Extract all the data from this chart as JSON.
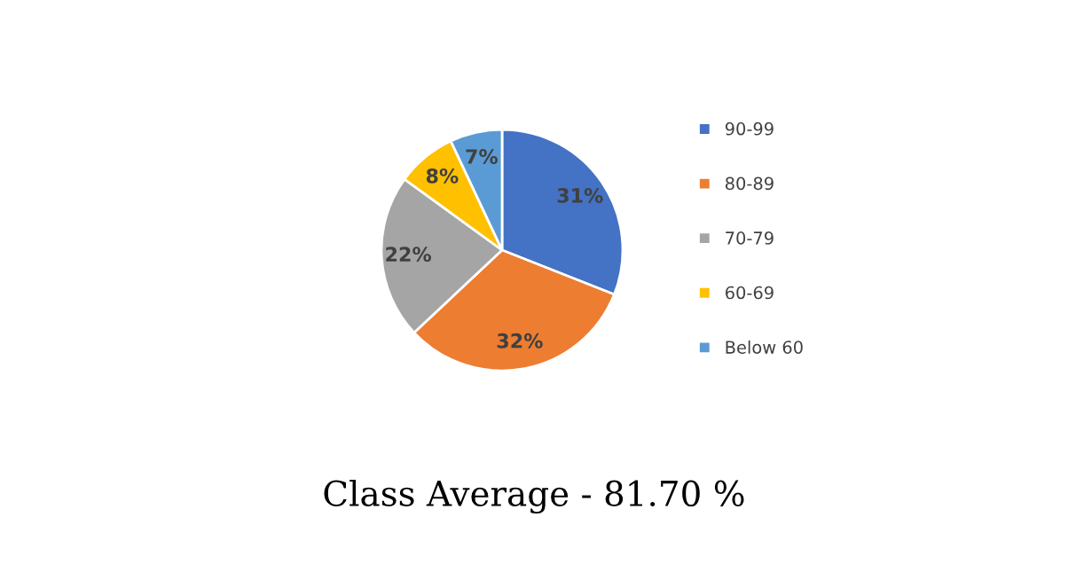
{
  "chart_data": {
    "type": "pie",
    "title": "Class Average - 81.70 %",
    "categories": [
      "90-99",
      "80-89",
      "70-79",
      "60-69",
      "Below 60"
    ],
    "values": [
      31,
      32,
      22,
      8,
      7
    ],
    "colors": [
      "#4472c4",
      "#ed7d31",
      "#a5a5a5",
      "#ffc000",
      "#5b9bd5"
    ],
    "value_labels": [
      "31%",
      "32%",
      "22%",
      "8%",
      "7%"
    ],
    "legend": "right"
  }
}
